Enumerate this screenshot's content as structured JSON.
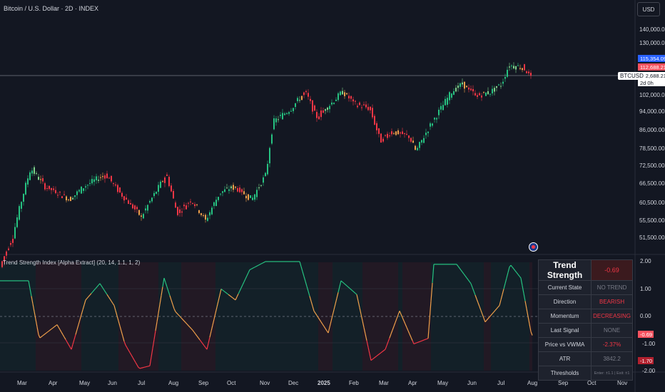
{
  "header": {
    "title": "Bitcoin / U.S. Dollar · 2D · INDEX",
    "currency": "USD"
  },
  "price_axis": {
    "labels": [
      "140,000.00",
      "130,000.00",
      "102,000.00",
      "94,000.00",
      "86,000.00",
      "78,500.00",
      "72,500.00",
      "66,500.00",
      "60,500.00",
      "55,500.00",
      "51,500.00"
    ],
    "values": [
      140000,
      130000,
      102000,
      94000,
      86000,
      78500,
      72500,
      66500,
      60500,
      55500,
      51500
    ],
    "tag_high": "115,354.09",
    "tag_low": "112,688.21",
    "tag_last": "112,688.21",
    "tag_countdown": "2d 0h",
    "symbol_badge": "BTCUSD"
  },
  "indicator": {
    "title": "Trend Strength Index [Alpha Extract] (20, 14, 1.1, 1, 2)",
    "axis_labels": [
      "2.00",
      "1.00",
      "0.00",
      "-1.00",
      "-2.00"
    ],
    "axis_values": [
      2,
      1,
      0,
      -1,
      -2
    ],
    "tag_value": "-0.69",
    "tag_low": "-1.70"
  },
  "time_axis": [
    "Mar",
    "Apr",
    "May",
    "Jun",
    "Jul",
    "Aug",
    "Sep",
    "Oct",
    "Nov",
    "Dec",
    "2025",
    "Feb",
    "Mar",
    "Apr",
    "May",
    "Jun",
    "Jul",
    "Aug",
    "Sep",
    "Oct",
    "Nov"
  ],
  "table": {
    "title": "Trend Strength",
    "value": "-0.69",
    "rows": [
      {
        "label": "Current State",
        "value": "NO TREND"
      },
      {
        "label": "Direction",
        "value": "BEARISH"
      },
      {
        "label": "Momentum",
        "value": "DECREASING"
      },
      {
        "label": "Last Signal",
        "value": "NONE"
      },
      {
        "label": "Price vs VWMA",
        "value": "-2.37%"
      },
      {
        "label": "ATR",
        "value": "3842.2"
      },
      {
        "label": "Thresholds",
        "value": "Enter: ±1.1 | Exit: ±1"
      }
    ]
  },
  "colors": {
    "bg": "#131722",
    "bull": "#26c281",
    "bear": "#f23645",
    "neutral": "#f0a04b",
    "blue_tag": "#2962ff",
    "orange_tag": "#f7525f"
  }
}
